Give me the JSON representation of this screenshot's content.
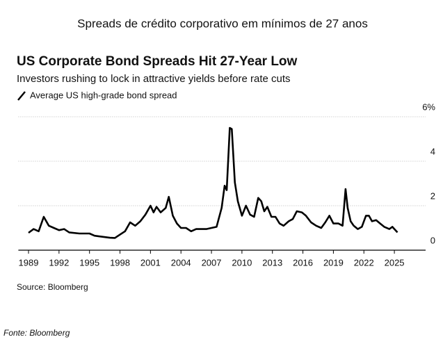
{
  "header": {
    "title": "Spreads de crédito corporativo em mínimos de 27 anos"
  },
  "chart_data": {
    "type": "line",
    "title": "US Corporate Bond Spreads Hit 27-Year Low",
    "subtitle": "Investors rushing to lock in attractive yields before rate cuts",
    "source": "Source: Bloomberg",
    "x": [
      1989,
      1989.5,
      1990,
      1990.5,
      1991,
      1991.5,
      1992,
      1992.5,
      1993,
      1994,
      1995,
      1995.5,
      1996,
      1997,
      1997.5,
      1998,
      1998.5,
      1999,
      1999.5,
      2000,
      2000.5,
      2001,
      2001.3,
      2001.6,
      2002,
      2002.5,
      2002.8,
      2003.2,
      2003.6,
      2004,
      2004.5,
      2005,
      2005.5,
      2006,
      2006.5,
      2007,
      2007.5,
      2008,
      2008.3,
      2008.5,
      2008.8,
      2009,
      2009.3,
      2009.6,
      2010,
      2010.4,
      2010.8,
      2011.2,
      2011.6,
      2011.9,
      2012.2,
      2012.5,
      2012.9,
      2013.3,
      2013.7,
      2014.1,
      2014.6,
      2015,
      2015.4,
      2015.9,
      2016.3,
      2016.8,
      2017.3,
      2017.8,
      2018.2,
      2018.6,
      2019,
      2019.5,
      2019.9,
      2020.2,
      2020.4,
      2020.7,
      2021,
      2021.4,
      2021.8,
      2022.2,
      2022.5,
      2022.8,
      2023.2,
      2023.6,
      2024,
      2024.5,
      2024.8,
      2025,
      2025.3
    ],
    "series": [
      {
        "name": "Average US high-grade bond spread",
        "color": "#000000",
        "values": [
          0.78,
          0.95,
          0.85,
          1.5,
          1.1,
          1.0,
          0.9,
          0.95,
          0.8,
          0.75,
          0.75,
          0.65,
          0.62,
          0.56,
          0.55,
          0.7,
          0.85,
          1.25,
          1.1,
          1.3,
          1.6,
          2.0,
          1.7,
          1.95,
          1.7,
          1.9,
          2.4,
          1.55,
          1.2,
          1.0,
          1.0,
          0.85,
          0.95,
          0.95,
          0.95,
          1.0,
          1.05,
          1.9,
          2.9,
          2.7,
          5.5,
          5.45,
          3.05,
          2.2,
          1.55,
          2.0,
          1.6,
          1.5,
          2.35,
          2.2,
          1.75,
          1.95,
          1.5,
          1.5,
          1.2,
          1.1,
          1.3,
          1.4,
          1.75,
          1.7,
          1.55,
          1.25,
          1.1,
          1.0,
          1.25,
          1.55,
          1.2,
          1.2,
          1.1,
          2.75,
          1.9,
          1.3,
          1.1,
          0.95,
          1.05,
          1.55,
          1.55,
          1.3,
          1.35,
          1.2,
          1.05,
          0.95,
          1.05,
          0.95,
          0.8
        ]
      }
    ],
    "xlim": [
      1988,
      2026.5
    ],
    "xticks": [
      1989,
      1992,
      1995,
      1998,
      2001,
      2004,
      2007,
      2010,
      2013,
      2016,
      2019,
      2022,
      2025
    ],
    "ylim": [
      0,
      6
    ],
    "yticks": [
      0,
      2,
      4,
      {
        "value": 6,
        "label": "6%"
      }
    ],
    "grid": true
  },
  "footer": {
    "caption": "Fonte: Bloomberg"
  }
}
